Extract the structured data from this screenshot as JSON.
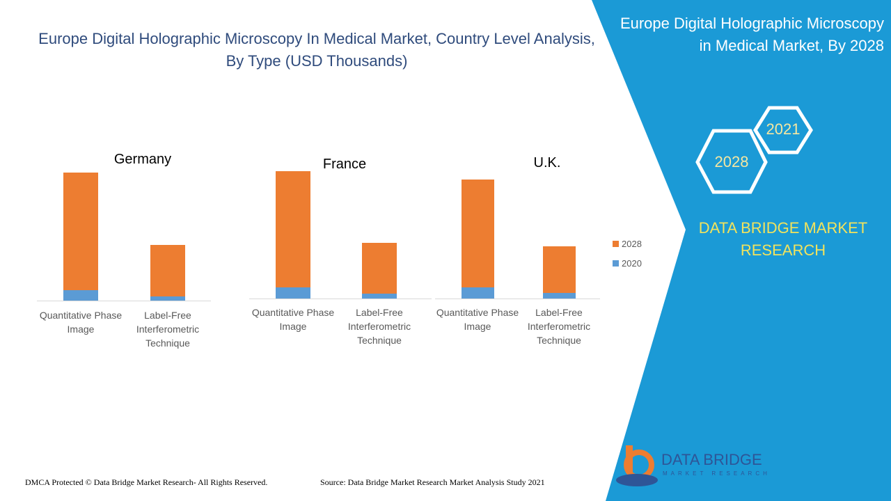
{
  "title": "Europe Digital Holographic Microscopy In Medical Market, Country Level Analysis, By Type (USD Thousands)",
  "chart_data": [
    {
      "type": "bar",
      "stacked": true,
      "title": "Germany",
      "categories": [
        "Quantitative Phase Image",
        "Label-Free Interferometric Technique"
      ],
      "series": [
        {
          "color": "#5b9bd5",
          "values": [
            15,
            6
          ]
        },
        {
          "color": "#ed7d31",
          "values": [
            169,
            74
          ]
        }
      ]
    },
    {
      "type": "bar",
      "stacked": true,
      "title": "France",
      "categories": [
        "Quantitative Phase Image",
        "Label-Free Interferometric Technique"
      ],
      "series": [
        {
          "color": "#5b9bd5",
          "values": [
            16,
            7
          ]
        },
        {
          "color": "#ed7d31",
          "values": [
            167,
            73
          ]
        }
      ]
    },
    {
      "type": "bar",
      "stacked": true,
      "title": "U.K.",
      "categories": [
        "Quantitative Phase Image",
        "Label-Free Interferometric Technique"
      ],
      "series": [
        {
          "name": "2020",
          "color": "#5b9bd5",
          "values": [
            16,
            8
          ]
        },
        {
          "name": "2028",
          "color": "#ed7d31",
          "values": [
            155,
            67
          ]
        }
      ],
      "legend": "right"
    }
  ],
  "side_panel": {
    "title": "Europe Digital Holographic Microscopy in Medical Market, By 2028",
    "hex_labels": [
      "2021",
      "2028"
    ],
    "brand": "DATA BRIDGE MARKET RESEARCH"
  },
  "logo": {
    "name": "DATA BRIDGE",
    "tagline": "MARKET RESEARCH"
  },
  "footer": {
    "copyright": "DMCA Protected © Data Bridge Market Research- All Rights Reserved.",
    "source": "Source: Data Bridge Market Research Market Analysis Study 2021"
  }
}
